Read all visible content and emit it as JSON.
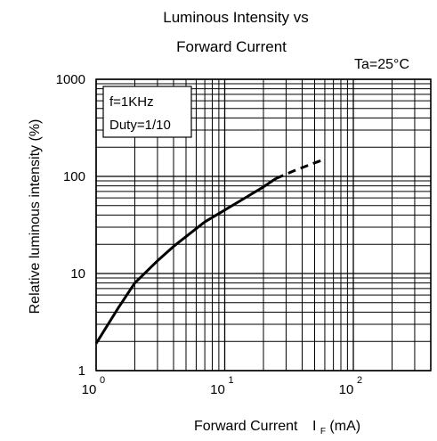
{
  "chart_data": {
    "type": "line",
    "title_line1": "Luminous Intensity vs",
    "title_line2": "Forward Current",
    "condition": "Ta=25°C",
    "xlabel": "Forward Current",
    "xlabel_symbol": "I",
    "xlabel_subscript": "F",
    "xlabel_unit": "(mA)",
    "ylabel": "Relative luminous intensity (%)",
    "x_scale": "log",
    "y_scale": "log",
    "xlim": [
      1,
      400
    ],
    "ylim": [
      1,
      1000
    ],
    "grid": true,
    "x_ticks": [
      {
        "value": 1,
        "base": "10",
        "exp": "0"
      },
      {
        "value": 10,
        "base": "10",
        "exp": "1"
      },
      {
        "value": 100,
        "base": "10",
        "exp": "2"
      }
    ],
    "y_ticks": [
      {
        "value": 1,
        "label": "1"
      },
      {
        "value": 10,
        "label": "10"
      },
      {
        "value": 100,
        "label": "100"
      },
      {
        "value": 1000,
        "label": "1000"
      }
    ],
    "legend_box": {
      "line1": "f=1KHz",
      "line2": "Duty=1/10"
    },
    "series": [
      {
        "style": "solid",
        "x": [
          1.0,
          1.5,
          2.0,
          3.0,
          4.0,
          5.0,
          7.0,
          10.0,
          15.0,
          20.0,
          25.0
        ],
        "y": [
          1.9,
          4.5,
          8.0,
          13.5,
          19.0,
          24.0,
          34.0,
          45.0,
          62.0,
          78.0,
          95.0
        ]
      },
      {
        "style": "dashed",
        "x": [
          25.0,
          35.0,
          50.0,
          60.0
        ],
        "y": [
          95.0,
          115.0,
          138.0,
          150.0
        ]
      }
    ]
  }
}
